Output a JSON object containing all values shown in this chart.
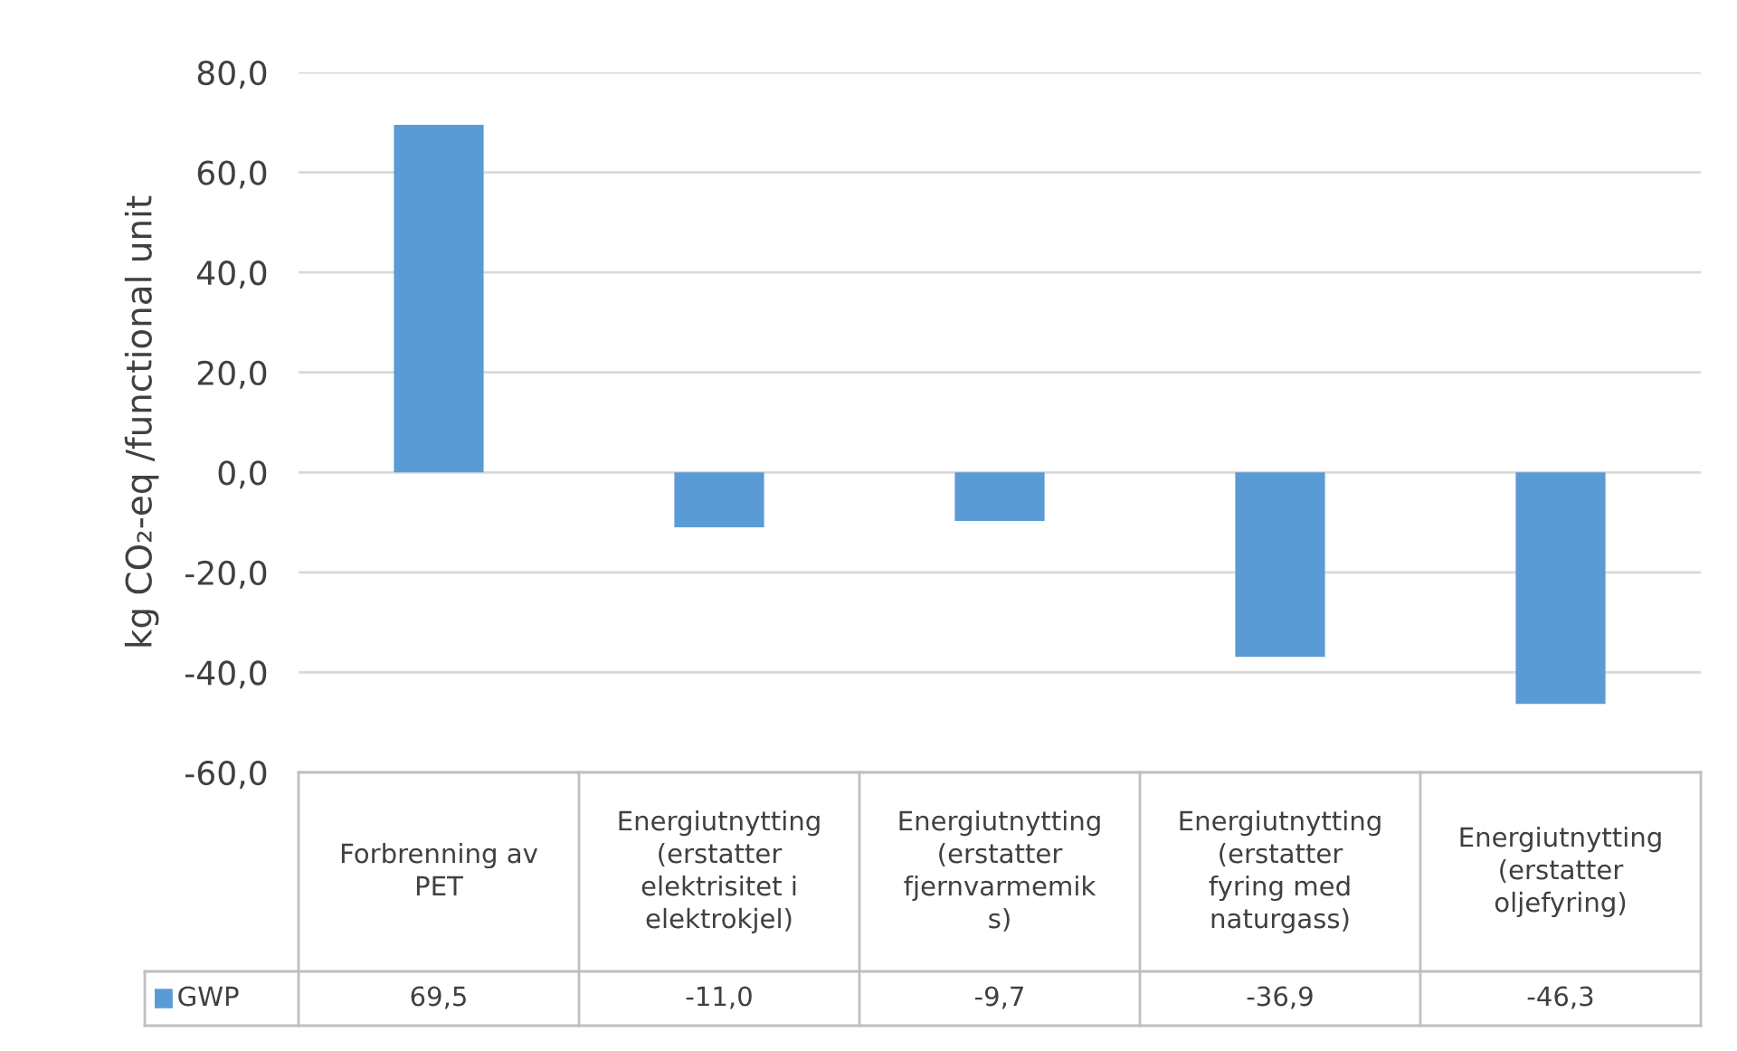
{
  "chart_data": {
    "type": "bar",
    "ylabel": "kg CO₂-eq /functional unit",
    "categories": [
      "Forbrenning av\nPET",
      "Energiutnytting\n(erstatter\nelektrisitet i\nelektrokjel)",
      "Energiutnytting\n(erstatter\nfjernvarmemik\ns)",
      "Energiutnytting\n(erstatter\nfyring med\nnaturgass)",
      "Energiutnytting\n(erstatter\noljefyring)"
    ],
    "series": [
      {
        "name": "GWP",
        "color": "#5b9bd5",
        "values": [
          69.5,
          -11.0,
          -9.7,
          -36.9,
          -46.3
        ],
        "value_labels": [
          "69,5",
          "-11,0",
          "-9,7",
          "-36,9",
          "-46,3"
        ]
      }
    ],
    "ylim": [
      -60,
      80
    ],
    "yticks": [
      {
        "value": -60,
        "label": "-60,0"
      },
      {
        "value": -40,
        "label": "-40,0"
      },
      {
        "value": -20,
        "label": "-20,0"
      },
      {
        "value": 0,
        "label": "0,0"
      },
      {
        "value": 20,
        "label": "20,0"
      },
      {
        "value": 40,
        "label": "40,0"
      },
      {
        "value": 60,
        "label": "60,0"
      },
      {
        "value": 80,
        "label": "80,0"
      }
    ],
    "grid": "y",
    "legend": "bottom"
  }
}
